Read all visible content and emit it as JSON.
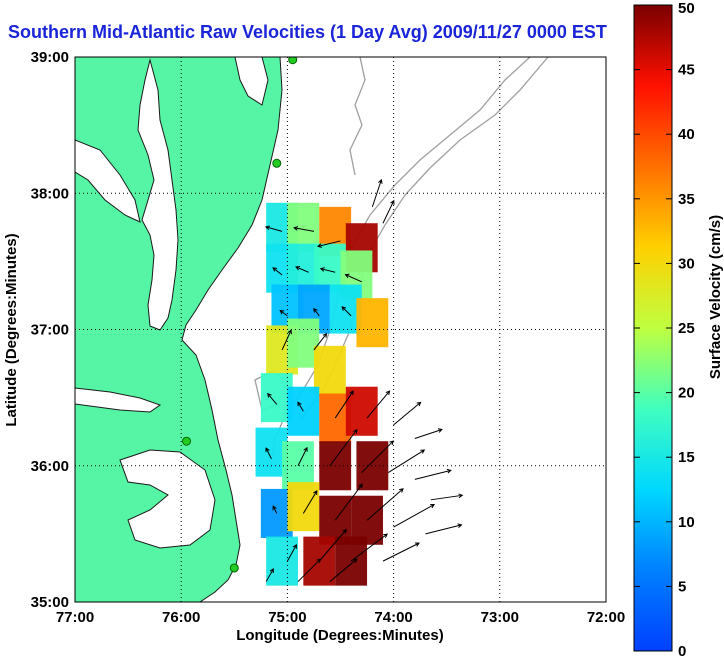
{
  "title": "Southern Mid-Atlantic Raw Velocities (1 Day Avg) 2009/11/27 0000 EST",
  "chart_data": {
    "type": "heatmap",
    "title": "Southern Mid-Atlantic Raw Velocities (1 Day Avg) 2009/11/27 0000 EST",
    "xlabel": "Longitude (Degrees:Minutes)",
    "ylabel": "Latitude (Degrees:Minutes)",
    "xlim": [
      -77,
      -72
    ],
    "ylim": [
      35,
      39
    ],
    "x_ticks": [
      {
        "value": -77,
        "label": "77:00"
      },
      {
        "value": -76,
        "label": "76:00"
      },
      {
        "value": -75,
        "label": "75:00"
      },
      {
        "value": -74,
        "label": "74:00"
      },
      {
        "value": -73,
        "label": "73:00"
      },
      {
        "value": -72,
        "label": "72:00"
      }
    ],
    "y_ticks": [
      {
        "value": 35,
        "label": "35:00"
      },
      {
        "value": 36,
        "label": "36:00"
      },
      {
        "value": 37,
        "label": "37:00"
      },
      {
        "value": 38,
        "label": "38:00"
      },
      {
        "value": 39,
        "label": "39:00"
      }
    ],
    "grid": "dotted",
    "colorbar": {
      "label": "Surface Velocity (cm/s)",
      "range": [
        0,
        50
      ],
      "ticks": [
        "0",
        "5",
        "10",
        "15",
        "20",
        "25",
        "30",
        "35",
        "40",
        "45",
        "50"
      ],
      "colormap": "jet",
      "placement": "right"
    },
    "speed_field": [
      {
        "lon": -75.05,
        "lat": 37.75,
        "speed": 15
      },
      {
        "lon": -74.85,
        "lat": 37.75,
        "speed": 22
      },
      {
        "lon": -74.55,
        "lat": 37.72,
        "speed": 36
      },
      {
        "lon": -74.3,
        "lat": 37.6,
        "speed": 48
      },
      {
        "lon": -75.05,
        "lat": 37.45,
        "speed": 14
      },
      {
        "lon": -74.85,
        "lat": 37.45,
        "speed": 16
      },
      {
        "lon": -74.6,
        "lat": 37.45,
        "speed": 18
      },
      {
        "lon": -74.35,
        "lat": 37.4,
        "speed": 22
      },
      {
        "lon": -75.0,
        "lat": 37.15,
        "speed": 11
      },
      {
        "lon": -74.75,
        "lat": 37.15,
        "speed": 9
      },
      {
        "lon": -74.45,
        "lat": 37.15,
        "speed": 14
      },
      {
        "lon": -74.2,
        "lat": 37.05,
        "speed": 33
      },
      {
        "lon": -75.05,
        "lat": 36.85,
        "speed": 28
      },
      {
        "lon": -74.85,
        "lat": 36.9,
        "speed": 22
      },
      {
        "lon": -74.6,
        "lat": 36.7,
        "speed": 30
      },
      {
        "lon": -75.1,
        "lat": 36.5,
        "speed": 18
      },
      {
        "lon": -74.85,
        "lat": 36.4,
        "speed": 12
      },
      {
        "lon": -74.55,
        "lat": 36.35,
        "speed": 38
      },
      {
        "lon": -74.3,
        "lat": 36.4,
        "speed": 46
      },
      {
        "lon": -75.15,
        "lat": 36.1,
        "speed": 14
      },
      {
        "lon": -74.9,
        "lat": 36.0,
        "speed": 20
      },
      {
        "lon": -74.55,
        "lat": 36.0,
        "speed": 50
      },
      {
        "lon": -74.2,
        "lat": 36.0,
        "speed": 50
      },
      {
        "lon": -75.1,
        "lat": 35.65,
        "speed": 8
      },
      {
        "lon": -74.85,
        "lat": 35.7,
        "speed": 30
      },
      {
        "lon": -74.55,
        "lat": 35.6,
        "speed": 50
      },
      {
        "lon": -74.25,
        "lat": 35.6,
        "speed": 50
      },
      {
        "lon": -75.05,
        "lat": 35.3,
        "speed": 15
      },
      {
        "lon": -74.7,
        "lat": 35.3,
        "speed": 48
      },
      {
        "lon": -74.4,
        "lat": 35.3,
        "speed": 50
      }
    ],
    "vectors": [
      {
        "lon": -75.05,
        "lat": 37.72,
        "u": -18,
        "v": 5
      },
      {
        "lon": -74.75,
        "lat": 37.72,
        "u": -22,
        "v": 4
      },
      {
        "lon": -74.5,
        "lat": 37.65,
        "u": -25,
        "v": -6
      },
      {
        "lon": -74.2,
        "lat": 37.9,
        "u": 10,
        "v": 30
      },
      {
        "lon": -74.1,
        "lat": 37.78,
        "u": 12,
        "v": 25
      },
      {
        "lon": -75.05,
        "lat": 37.4,
        "u": -10,
        "v": 8
      },
      {
        "lon": -74.8,
        "lat": 37.42,
        "u": -14,
        "v": 6
      },
      {
        "lon": -74.55,
        "lat": 37.42,
        "u": -16,
        "v": 4
      },
      {
        "lon": -74.3,
        "lat": 37.35,
        "u": -18,
        "v": 8
      },
      {
        "lon": -75.0,
        "lat": 37.1,
        "u": -8,
        "v": 6
      },
      {
        "lon": -74.7,
        "lat": 37.1,
        "u": -6,
        "v": 8
      },
      {
        "lon": -74.4,
        "lat": 37.1,
        "u": -10,
        "v": 10
      },
      {
        "lon": -75.05,
        "lat": 36.85,
        "u": 10,
        "v": 22
      },
      {
        "lon": -74.75,
        "lat": 36.85,
        "u": 14,
        "v": 18
      },
      {
        "lon": -75.1,
        "lat": 36.45,
        "u": -10,
        "v": 12
      },
      {
        "lon": -74.85,
        "lat": 36.4,
        "u": -6,
        "v": 10
      },
      {
        "lon": -74.55,
        "lat": 36.35,
        "u": 20,
        "v": 30
      },
      {
        "lon": -74.25,
        "lat": 36.35,
        "u": 25,
        "v": 30
      },
      {
        "lon": -74.0,
        "lat": 36.3,
        "u": 30,
        "v": 25
      },
      {
        "lon": -73.8,
        "lat": 36.2,
        "u": 30,
        "v": 10
      },
      {
        "lon": -75.15,
        "lat": 36.05,
        "u": -6,
        "v": 12
      },
      {
        "lon": -74.9,
        "lat": 36.0,
        "u": 10,
        "v": 20
      },
      {
        "lon": -74.6,
        "lat": 36.0,
        "u": 30,
        "v": 40
      },
      {
        "lon": -74.3,
        "lat": 35.95,
        "u": 35,
        "v": 35
      },
      {
        "lon": -74.05,
        "lat": 35.95,
        "u": 40,
        "v": 25
      },
      {
        "lon": -73.8,
        "lat": 35.9,
        "u": 40,
        "v": 10
      },
      {
        "lon": -73.65,
        "lat": 35.75,
        "u": 35,
        "v": 5
      },
      {
        "lon": -75.1,
        "lat": 35.65,
        "u": -4,
        "v": 8
      },
      {
        "lon": -74.85,
        "lat": 35.65,
        "u": 15,
        "v": 25
      },
      {
        "lon": -74.55,
        "lat": 35.6,
        "u": 30,
        "v": 40
      },
      {
        "lon": -74.25,
        "lat": 35.6,
        "u": 40,
        "v": 35
      },
      {
        "lon": -74.0,
        "lat": 35.55,
        "u": 45,
        "v": 25
      },
      {
        "lon": -73.7,
        "lat": 35.5,
        "u": 40,
        "v": 10
      },
      {
        "lon": -75.0,
        "lat": 35.3,
        "u": 10,
        "v": 18
      },
      {
        "lon": -74.7,
        "lat": 35.3,
        "u": 30,
        "v": 35
      },
      {
        "lon": -74.4,
        "lat": 35.3,
        "u": 40,
        "v": 30
      },
      {
        "lon": -74.1,
        "lat": 35.3,
        "u": 40,
        "v": 20
      },
      {
        "lon": -75.2,
        "lat": 35.15,
        "u": 8,
        "v": 14
      },
      {
        "lon": -74.9,
        "lat": 35.15,
        "u": 25,
        "v": 25
      },
      {
        "lon": -74.6,
        "lat": 35.15,
        "u": 30,
        "v": 25
      }
    ],
    "stations": [
      {
        "lon": -74.95,
        "lat": 38.98
      },
      {
        "lon": -75.1,
        "lat": 38.22
      },
      {
        "lon": -75.95,
        "lat": 36.18
      },
      {
        "lon": -75.5,
        "lat": 35.25
      }
    ]
  },
  "colors": {
    "land": "#55f5a5",
    "coast": "#1a1a1a",
    "bathymetry": "#a0a0a0",
    "title": "#1a24d8"
  }
}
